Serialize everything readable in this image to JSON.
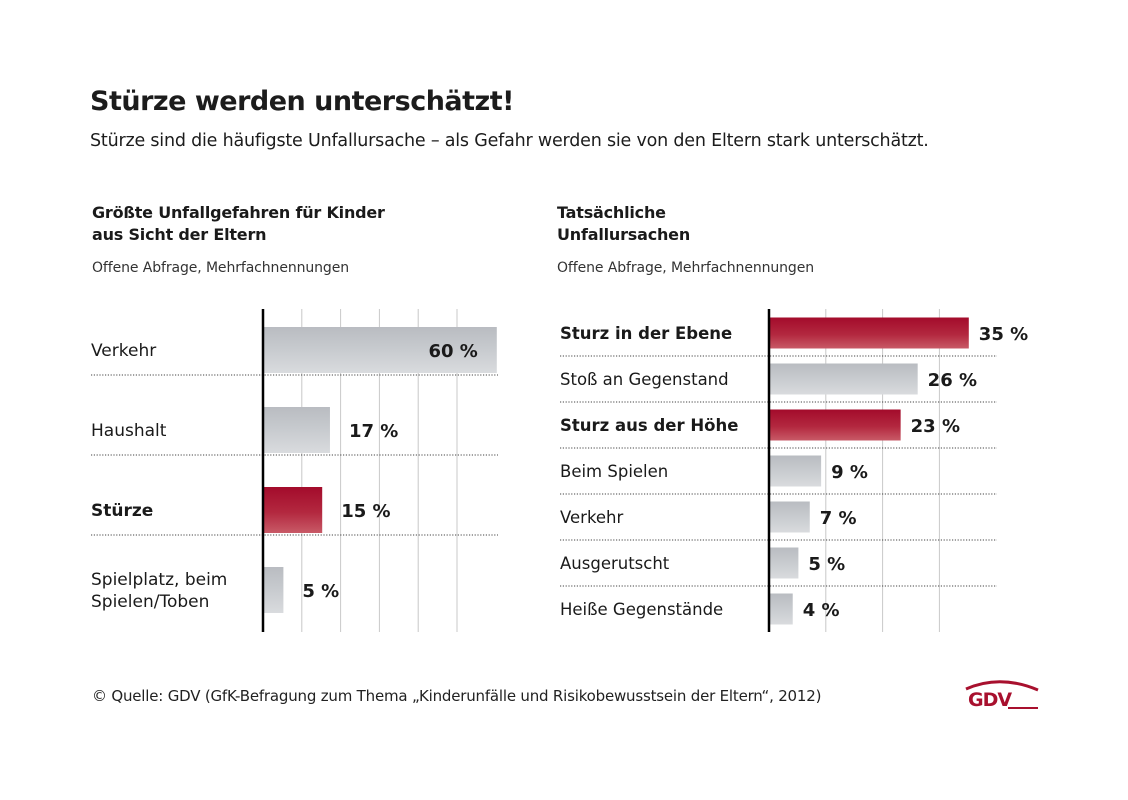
{
  "header": {
    "title": "Stürze werden unterschätzt!",
    "subtitle": "Stürze sind die häufigste Unfallursache – als Gefahr werden sie von den Eltern stark unterschätzt."
  },
  "colors": {
    "highlight": "#a8102e",
    "neutral": "#c3c6cb",
    "axis": "#000000",
    "grid": "#c8c8c8"
  },
  "chart_data": [
    {
      "type": "bar",
      "orientation": "horizontal",
      "title": "Größte Unfallgefahren für Kinder aus Sicht der Eltern",
      "title_lines": [
        "Größte Unfallgefahren für Kinder",
        "aus Sicht der Eltern"
      ],
      "subtitle": "Offene Abfrage, Mehrfachnennungen",
      "categories": [
        "Verkehr",
        "Haushalt",
        "Stürze",
        "Spielplatz, beim Spielen/Toben"
      ],
      "category_lines": [
        [
          "Verkehr"
        ],
        [
          "Haushalt"
        ],
        [
          "Stürze"
        ],
        [
          "Spielplatz, beim",
          "Spielen/Toben"
        ]
      ],
      "values": [
        60,
        17,
        15,
        5
      ],
      "labels": [
        "60 %",
        "17 %",
        "15 %",
        "5 %"
      ],
      "highlighted": [
        false,
        false,
        true,
        false
      ],
      "unit": "%",
      "xlim": [
        0,
        60
      ],
      "grid_step": 10,
      "grid": true,
      "label_inside_for_max": true
    },
    {
      "type": "bar",
      "orientation": "horizontal",
      "title": "Tatsächliche Unfallursachen",
      "title_lines": [
        "Tatsächliche",
        "Unfallursachen"
      ],
      "subtitle": "Offene Abfrage, Mehrfachnennungen",
      "categories": [
        "Sturz in der Ebene",
        "Stoß an Gegenstand",
        "Sturz aus der Höhe",
        "Beim Spielen",
        "Verkehr",
        "Ausgerutscht",
        "Heiße Gegenstände"
      ],
      "values": [
        35,
        26,
        23,
        9,
        7,
        5,
        4
      ],
      "labels": [
        "35 %",
        "26 %",
        "23 %",
        "9 %",
        "7 %",
        "5 %",
        "4 %"
      ],
      "highlighted": [
        true,
        false,
        true,
        false,
        false,
        false,
        false
      ],
      "unit": "%",
      "xlim": [
        0,
        35
      ],
      "grid_step": 10,
      "grid": true
    }
  ],
  "footer": {
    "source": "© Quelle: GDV (GfK-Befragung zum Thema „Kinderunfälle und Risikobewusstsein der Eltern“, 2012)",
    "logo_text": "GDV"
  }
}
